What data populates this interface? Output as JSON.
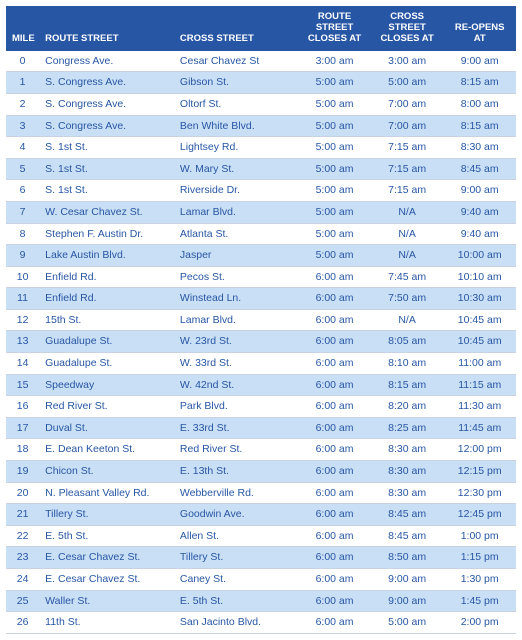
{
  "headers": {
    "mile": "MILE",
    "route": "ROUTE STREET",
    "cross": "CROSS STREET",
    "routeCloses": "ROUTE STREET CLOSES AT",
    "crossCloses": "CROSS STREET CLOSES AT",
    "reopens": "RE-OPENS AT"
  },
  "rows": [
    {
      "mile": "0",
      "route": "Congress Ave.",
      "cross": "Cesar Chavez St",
      "rcl": "3:00 am",
      "ccl": "3:00 am",
      "reopen": "9:00 am"
    },
    {
      "mile": "1",
      "route": "S. Congress Ave.",
      "cross": "Gibson St.",
      "rcl": "5:00 am",
      "ccl": "5:00 am",
      "reopen": "8:15 am"
    },
    {
      "mile": "2",
      "route": "S. Congress Ave.",
      "cross": "Oltorf St.",
      "rcl": "5:00 am",
      "ccl": "7:00 am",
      "reopen": "8:00 am"
    },
    {
      "mile": "3",
      "route": "S. Congress Ave.",
      "cross": "Ben White Blvd.",
      "rcl": "5:00 am",
      "ccl": "7:00 am",
      "reopen": "8:15 am"
    },
    {
      "mile": "4",
      "route": "S. 1st St.",
      "cross": "Lightsey Rd.",
      "rcl": "5:00 am",
      "ccl": "7:15 am",
      "reopen": "8:30 am"
    },
    {
      "mile": "5",
      "route": "S. 1st St.",
      "cross": "W. Mary St.",
      "rcl": "5:00 am",
      "ccl": "7:15 am",
      "reopen": "8:45 am"
    },
    {
      "mile": "6",
      "route": "S. 1st St.",
      "cross": "Riverside Dr.",
      "rcl": "5:00 am",
      "ccl": "7:15 am",
      "reopen": "9:00 am"
    },
    {
      "mile": "7",
      "route": "W. Cesar Chavez St.",
      "cross": "Lamar Blvd.",
      "rcl": "5:00 am",
      "ccl": "N/A",
      "reopen": "9:40 am"
    },
    {
      "mile": "8",
      "route": "Stephen F. Austin Dr.",
      "cross": "Atlanta St.",
      "rcl": "5:00 am",
      "ccl": "N/A",
      "reopen": "9:40 am"
    },
    {
      "mile": "9",
      "route": "Lake Austin Blvd.",
      "cross": "Jasper",
      "rcl": "5:00 am",
      "ccl": "N/A",
      "reopen": "10:00 am"
    },
    {
      "mile": "10",
      "route": "Enfield Rd.",
      "cross": "Pecos St.",
      "rcl": "6:00 am",
      "ccl": "7:45 am",
      "reopen": "10:10 am"
    },
    {
      "mile": "11",
      "route": "Enfield Rd.",
      "cross": "Winstead Ln.",
      "rcl": "6:00 am",
      "ccl": "7:50 am",
      "reopen": "10:30 am"
    },
    {
      "mile": "12",
      "route": "15th St.",
      "cross": "Lamar Blvd.",
      "rcl": "6:00 am",
      "ccl": "N/A",
      "reopen": "10:45 am"
    },
    {
      "mile": "13",
      "route": "Guadalupe St.",
      "cross": "W. 23rd St.",
      "rcl": "6:00 am",
      "ccl": "8:05 am",
      "reopen": "10:45 am"
    },
    {
      "mile": "14",
      "route": "Guadalupe St.",
      "cross": "W. 33rd St.",
      "rcl": "6:00 am",
      "ccl": "8:10 am",
      "reopen": "11:00 am"
    },
    {
      "mile": "15",
      "route": "Speedway",
      "cross": "W. 42nd St.",
      "rcl": "6:00 am",
      "ccl": "8:15 am",
      "reopen": "11:15 am"
    },
    {
      "mile": "16",
      "route": "Red River St.",
      "cross": "Park Blvd.",
      "rcl": "6:00 am",
      "ccl": "8:20 am",
      "reopen": "11:30 am"
    },
    {
      "mile": "17",
      "route": "Duval St.",
      "cross": "E. 33rd St.",
      "rcl": "6:00 am",
      "ccl": "8:25 am",
      "reopen": "11:45 am"
    },
    {
      "mile": "18",
      "route": "E. Dean Keeton St.",
      "cross": "Red River St.",
      "rcl": "6:00 am",
      "ccl": "8:30 am",
      "reopen": "12:00 pm"
    },
    {
      "mile": "19",
      "route": "Chicon St.",
      "cross": "E. 13th St.",
      "rcl": "6:00 am",
      "ccl": "8:30 am",
      "reopen": "12:15 pm"
    },
    {
      "mile": "20",
      "route": "N. Pleasant Valley Rd.",
      "cross": "Webberville Rd.",
      "rcl": "6:00 am",
      "ccl": "8:30 am",
      "reopen": "12:30 pm"
    },
    {
      "mile": "21",
      "route": "Tillery St.",
      "cross": "Goodwin Ave.",
      "rcl": "6:00 am",
      "ccl": "8:45 am",
      "reopen": "12:45 pm"
    },
    {
      "mile": "22",
      "route": "E. 5th St.",
      "cross": "Allen St.",
      "rcl": "6:00 am",
      "ccl": "8:45 am",
      "reopen": "1:00 pm"
    },
    {
      "mile": "23",
      "route": "E. Cesar Chavez St.",
      "cross": "Tillery St.",
      "rcl": "6:00 am",
      "ccl": "8:50 am",
      "reopen": "1:15 pm"
    },
    {
      "mile": "24",
      "route": "E. Cesar Chavez St.",
      "cross": "Caney St.",
      "rcl": "6:00 am",
      "ccl": "9:00 am",
      "reopen": "1:30 pm"
    },
    {
      "mile": "25",
      "route": "Waller St.",
      "cross": "E. 5th St.",
      "rcl": "6:00 am",
      "ccl": "9:00 am",
      "reopen": "1:45 pm"
    },
    {
      "mile": "26",
      "route": "11th St.",
      "cross": "San Jacinto Blvd.",
      "rcl": "6:00 am",
      "ccl": "5:00 am",
      "reopen": "2:00 pm"
    }
  ],
  "colors": {
    "headerBg": "#2756a5",
    "headerText": "#ffffff",
    "textColor": "#2756a5",
    "oddRowBg": "#c9dff5",
    "evenRowBg": "#ffffff",
    "borderColor": "#c8d2e0"
  }
}
